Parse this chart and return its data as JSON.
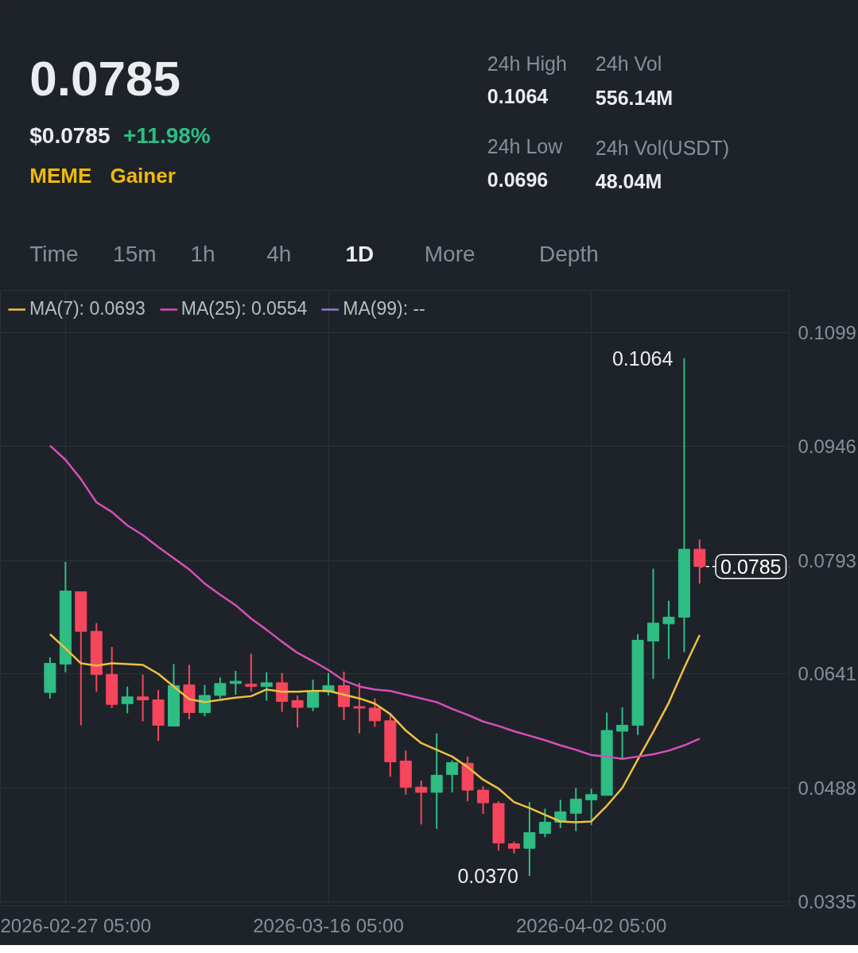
{
  "chart_data": {
    "type": "candlestick",
    "x": [
      "2026-02-26T05:00",
      "2026-02-27T05:00",
      "2026-02-28T05:00",
      "2026-03-01T05:00",
      "2026-03-02T05:00",
      "2026-03-03T05:00",
      "2026-03-04T05:00",
      "2026-03-05T05:00",
      "2026-03-06T05:00",
      "2026-03-07T05:00",
      "2026-03-08T05:00",
      "2026-03-09T05:00",
      "2026-03-10T05:00",
      "2026-03-11T05:00",
      "2026-03-12T05:00",
      "2026-03-13T05:00",
      "2026-03-14T05:00",
      "2026-03-15T05:00",
      "2026-03-16T05:00",
      "2026-03-17T05:00",
      "2026-03-18T05:00",
      "2026-03-19T05:00",
      "2026-03-20T05:00",
      "2026-03-21T05:00",
      "2026-03-22T05:00",
      "2026-03-23T05:00",
      "2026-03-24T05:00",
      "2026-03-25T05:00",
      "2026-03-26T05:00",
      "2026-03-27T05:00",
      "2026-03-28T05:00",
      "2026-03-29T05:00",
      "2026-03-30T05:00",
      "2026-03-31T05:00",
      "2026-04-01T05:00",
      "2026-04-02T05:00",
      "2026-04-03T05:00",
      "2026-04-04T05:00",
      "2026-04-05T05:00",
      "2026-04-06T05:00",
      "2026-04-07T05:00",
      "2026-04-08T05:00",
      "2026-04-09T05:00"
    ],
    "ohlc": [
      [
        0.0616,
        0.0663,
        0.0608,
        0.0655
      ],
      [
        0.0654,
        0.0791,
        0.0643,
        0.0752
      ],
      [
        0.0751,
        0.0751,
        0.0572,
        0.0698
      ],
      [
        0.0698,
        0.0709,
        0.0617,
        0.064
      ],
      [
        0.064,
        0.0677,
        0.0595,
        0.06
      ],
      [
        0.0601,
        0.0624,
        0.0588,
        0.061
      ],
      [
        0.061,
        0.064,
        0.0577,
        0.0606
      ],
      [
        0.0606,
        0.0619,
        0.0551,
        0.0572
      ],
      [
        0.0571,
        0.0654,
        0.057,
        0.0625
      ],
      [
        0.0626,
        0.0653,
        0.058,
        0.0589
      ],
      [
        0.0589,
        0.0626,
        0.0584,
        0.0612
      ],
      [
        0.0612,
        0.0636,
        0.0608,
        0.0628
      ],
      [
        0.0628,
        0.0645,
        0.0613,
        0.0631
      ],
      [
        0.0627,
        0.0668,
        0.0617,
        0.0624
      ],
      [
        0.0624,
        0.0643,
        0.0605,
        0.0629
      ],
      [
        0.0629,
        0.0642,
        0.059,
        0.0604
      ],
      [
        0.0605,
        0.0612,
        0.0569,
        0.0596
      ],
      [
        0.0596,
        0.0633,
        0.0591,
        0.0617
      ],
      [
        0.0617,
        0.0642,
        0.0612,
        0.0625
      ],
      [
        0.0625,
        0.0644,
        0.0579,
        0.0597
      ],
      [
        0.0597,
        0.0629,
        0.0561,
        0.0595
      ],
      [
        0.0595,
        0.0608,
        0.057,
        0.0578
      ],
      [
        0.0578,
        0.0586,
        0.0503,
        0.0523
      ],
      [
        0.0524,
        0.0538,
        0.0479,
        0.0489
      ],
      [
        0.0489,
        0.0498,
        0.0439,
        0.0482
      ],
      [
        0.0482,
        0.0561,
        0.0433,
        0.0505
      ],
      [
        0.0506,
        0.0525,
        0.0482,
        0.0522
      ],
      [
        0.0521,
        0.053,
        0.047,
        0.0485
      ],
      [
        0.0485,
        0.049,
        0.0453,
        0.0468
      ],
      [
        0.0467,
        0.047,
        0.0404,
        0.0414
      ],
      [
        0.0413,
        0.0416,
        0.04,
        0.0407
      ],
      [
        0.0407,
        0.0469,
        0.037,
        0.0428
      ],
      [
        0.0427,
        0.046,
        0.0422,
        0.0442
      ],
      [
        0.0442,
        0.0472,
        0.0434,
        0.0456
      ],
      [
        0.0454,
        0.0488,
        0.043,
        0.0473
      ],
      [
        0.0472,
        0.0487,
        0.0438,
        0.0479
      ],
      [
        0.0478,
        0.0589,
        0.0478,
        0.0565
      ],
      [
        0.0564,
        0.0596,
        0.0527,
        0.0572
      ],
      [
        0.0572,
        0.0694,
        0.0559,
        0.0686
      ],
      [
        0.0685,
        0.0782,
        0.0634,
        0.0709
      ],
      [
        0.0708,
        0.0739,
        0.0661,
        0.0717
      ],
      [
        0.0717,
        0.1064,
        0.067,
        0.0808
      ],
      [
        0.0808,
        0.0821,
        0.0762,
        0.0785
      ]
    ],
    "colors": [
      "#2ebd85",
      "#2ebd85",
      "#f6465d",
      "#f6465d",
      "#f6465d",
      "#2ebd85",
      "#f6465d",
      "#f6465d",
      "#2ebd85",
      "#f6465d",
      "#2ebd85",
      "#2ebd85",
      "#2ebd85",
      "#f6465d",
      "#2ebd85",
      "#f6465d",
      "#f6465d",
      "#2ebd85",
      "#2ebd85",
      "#f6465d",
      "#f6465d",
      "#f6465d",
      "#f6465d",
      "#f6465d",
      "#f6465d",
      "#2ebd85",
      "#2ebd85",
      "#f6465d",
      "#f6465d",
      "#f6465d",
      "#f6465d",
      "#2ebd85",
      "#2ebd85",
      "#2ebd85",
      "#2ebd85",
      "#2ebd85",
      "#2ebd85",
      "#2ebd85",
      "#2ebd85",
      "#2ebd85",
      "#2ebd85",
      "#2ebd85",
      "#f6465d"
    ],
    "series": [
      {
        "name": "MA(7): 0.0693",
        "type": "line",
        "color": "#f0c040",
        "values": [
          0.0694,
          0.0675,
          0.0655,
          0.0652,
          0.0655,
          0.0654,
          0.0653,
          0.0641,
          0.0624,
          0.0607,
          0.0603,
          0.0606,
          0.0609,
          0.0611,
          0.062,
          0.0617,
          0.0617,
          0.0618,
          0.0618,
          0.0613,
          0.0608,
          0.0601,
          0.0587,
          0.0565,
          0.0548,
          0.0539,
          0.053,
          0.0516,
          0.0499,
          0.0487,
          0.0469,
          0.0461,
          0.0452,
          0.0443,
          0.0442,
          0.0443,
          0.0464,
          0.0488,
          0.0526,
          0.0563,
          0.0602,
          0.0649,
          0.0693
        ]
      },
      {
        "name": "MA(25): 0.0554",
        "type": "line",
        "color": "#d64fba",
        "values": [
          0.0947,
          0.0928,
          0.0902,
          0.0871,
          0.0858,
          0.084,
          0.0827,
          0.0811,
          0.0796,
          0.0781,
          0.0762,
          0.0747,
          0.0733,
          0.0715,
          0.07,
          0.0684,
          0.0669,
          0.0658,
          0.0646,
          0.0632,
          0.0624,
          0.062,
          0.0618,
          0.0613,
          0.0608,
          0.0603,
          0.0594,
          0.0586,
          0.0577,
          0.0571,
          0.0564,
          0.0558,
          0.0552,
          0.0545,
          0.0539,
          0.0532,
          0.053,
          0.0527,
          0.053,
          0.0533,
          0.0538,
          0.0545,
          0.0554
        ]
      },
      {
        "name": "MA(99): --",
        "type": "line",
        "color": "#8e7ad0",
        "values": [
          null,
          null,
          null,
          null,
          null,
          null,
          null,
          null,
          null,
          null,
          null,
          null,
          null,
          null,
          null,
          null,
          null,
          null,
          null,
          null,
          null,
          null,
          null,
          null,
          null,
          null,
          null,
          null,
          null,
          null,
          null,
          null,
          null,
          null,
          null,
          null,
          null,
          null,
          null,
          null,
          null,
          null,
          null
        ]
      }
    ],
    "xlim": [
      "2026-02-23T00:00",
      "2026-04-15T00:00"
    ],
    "xticks": [
      {
        "value": "2026-02-27T05:00",
        "label": "2026-02-27 05:00"
      },
      {
        "value": "2026-03-16T05:00",
        "label": "2026-03-16 05:00"
      },
      {
        "value": "2026-04-02T05:00",
        "label": "2026-04-02 05:00"
      }
    ],
    "ylim": [
      0.033,
      0.1155
    ],
    "yticks": [
      0.0335,
      0.0488,
      0.0641,
      0.0793,
      0.0946,
      0.1099
    ],
    "grid": true,
    "legend": "top left",
    "ref_lines": [
      {
        "axis": "y",
        "value": 0.0785,
        "label": "0.0785",
        "color": "#ffffff",
        "line_style": "dashed"
      }
    ],
    "annotations": [
      "0.0785",
      "$0.0785",
      "+11.98%",
      "MEME",
      "Gainer",
      "24h High",
      "0.1064",
      "24h Vol",
      "556.14M",
      "24h Low",
      "0.0696",
      "24h Vol(USDT)",
      "48.04M",
      "Time",
      "15m",
      "1h",
      "4h",
      "1D",
      "More",
      "Depth",
      {
        "text": "0.1064",
        "x": "2026-04-08T05:00",
        "y": 0.1064
      },
      {
        "text": "0.0370",
        "x": "2026-03-29T05:00",
        "y": 0.037
      }
    ]
  }
}
